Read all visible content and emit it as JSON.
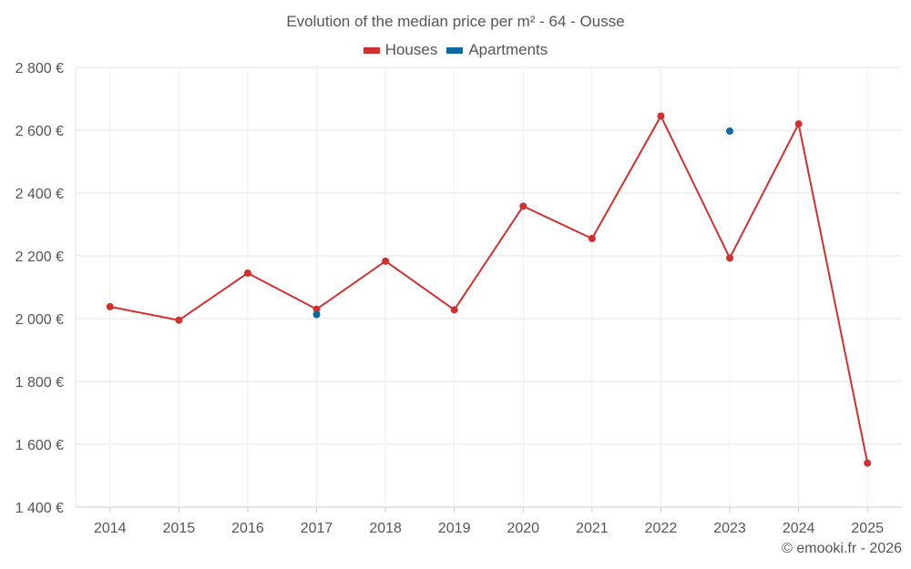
{
  "chart_data": {
    "type": "line",
    "title": "Evolution of the median price per m² - 64 - Ousse",
    "categories": [
      "2014",
      "2015",
      "2016",
      "2017",
      "2018",
      "2019",
      "2020",
      "2021",
      "2022",
      "2023",
      "2024",
      "2025"
    ],
    "series": [
      {
        "name": "Houses",
        "color": "#d32f2f",
        "values": [
          2038,
          1995,
          2145,
          2030,
          2183,
          2028,
          2358,
          2255,
          2645,
          2193,
          2620,
          1540
        ]
      },
      {
        "name": "Apartments",
        "color": "#0a6aa1",
        "values": [
          null,
          null,
          null,
          2013,
          null,
          null,
          null,
          null,
          null,
          2597,
          null,
          null
        ]
      }
    ],
    "ylim": [
      1400,
      2800
    ],
    "yticks": [
      1400,
      1600,
      1800,
      2000,
      2200,
      2400,
      2600,
      2800
    ],
    "ytick_labels": [
      "1 400 €",
      "1 600 €",
      "1 800 €",
      "2 000 €",
      "2 200 €",
      "2 400 €",
      "2 600 €",
      "2 800 €"
    ],
    "grid": true,
    "legend_position": "top-center"
  },
  "credit": "© emooki.fr - 2026"
}
